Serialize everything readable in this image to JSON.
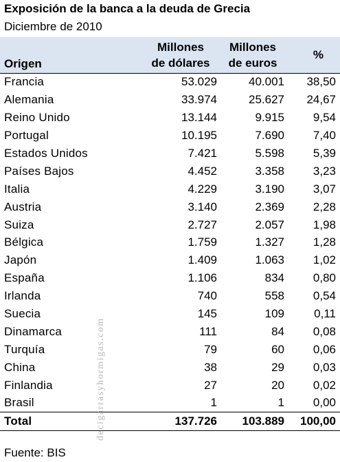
{
  "title": "Exposición de la banca a la deuda de Grecia",
  "subtitle": "Diciembre de 2010",
  "table": {
    "headers": {
      "origin": "Origen",
      "usd_line1": "Millones",
      "usd_line2": "de dólares",
      "eur_line1": "Millones",
      "eur_line2": "de euros",
      "pct": "%"
    },
    "rows": [
      {
        "origin": "Francia",
        "usd": "53.029",
        "eur": "40.001",
        "pct": "38,50"
      },
      {
        "origin": "Alemania",
        "usd": "33.974",
        "eur": "25.627",
        "pct": "24,67"
      },
      {
        "origin": "Reino Unido",
        "usd": "13.144",
        "eur": "9.915",
        "pct": "9,54"
      },
      {
        "origin": "Portugal",
        "usd": "10.195",
        "eur": "7.690",
        "pct": "7,40"
      },
      {
        "origin": "Estados Unidos",
        "usd": "7.421",
        "eur": "5.598",
        "pct": "5,39"
      },
      {
        "origin": "Países Bajos",
        "usd": "4.452",
        "eur": "3.358",
        "pct": "3,23"
      },
      {
        "origin": "Italia",
        "usd": "4.229",
        "eur": "3.190",
        "pct": "3,07"
      },
      {
        "origin": "Austria",
        "usd": "3.140",
        "eur": "2.369",
        "pct": "2,28"
      },
      {
        "origin": "Suiza",
        "usd": "2.727",
        "eur": "2.057",
        "pct": "1,98"
      },
      {
        "origin": "Bélgica",
        "usd": "1.759",
        "eur": "1.327",
        "pct": "1,28"
      },
      {
        "origin": "Japón",
        "usd": "1.409",
        "eur": "1.063",
        "pct": "1,02"
      },
      {
        "origin": "España",
        "usd": "1.106",
        "eur": "834",
        "pct": "0,80"
      },
      {
        "origin": "Irlanda",
        "usd": "740",
        "eur": "558",
        "pct": "0,54"
      },
      {
        "origin": "Suecia",
        "usd": "145",
        "eur": "109",
        "pct": "0,11"
      },
      {
        "origin": "Dinamarca",
        "usd": "111",
        "eur": "84",
        "pct": "0,08"
      },
      {
        "origin": "Turquía",
        "usd": "79",
        "eur": "60",
        "pct": "0,06"
      },
      {
        "origin": "China",
        "usd": "38",
        "eur": "29",
        "pct": "0,03"
      },
      {
        "origin": "Finlandia",
        "usd": "27",
        "eur": "20",
        "pct": "0,02"
      },
      {
        "origin": "Brasil",
        "usd": "1",
        "eur": "1",
        "pct": "0,00"
      }
    ],
    "total": {
      "origin": "Total",
      "usd": "137.726",
      "eur": "103.889",
      "pct": "100,00"
    }
  },
  "source": "Fuente: BIS",
  "watermark": "decigarrasyhormigas.com"
}
